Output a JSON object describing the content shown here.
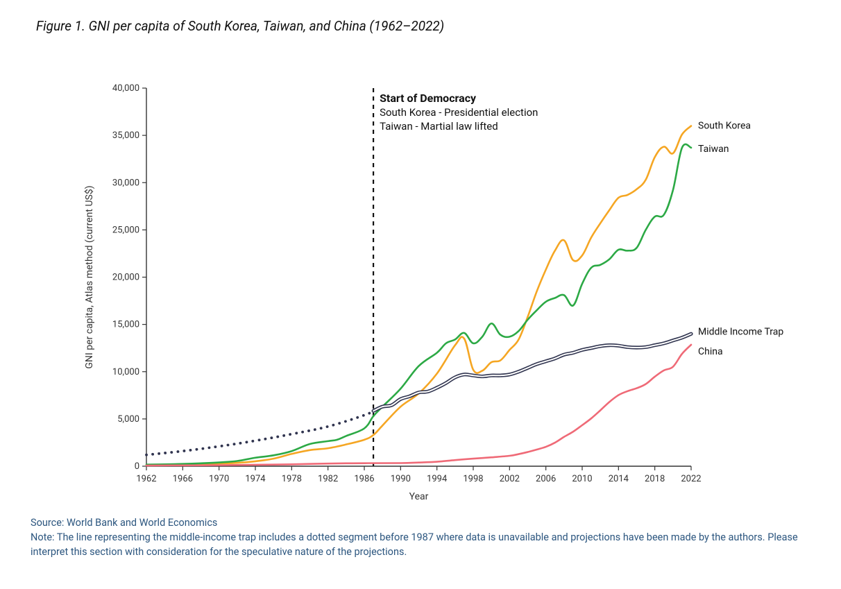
{
  "figure": {
    "title": "Figure 1. GNI per capita of South Korea, Taiwan, and China (1962–2022)"
  },
  "chart": {
    "type": "line",
    "background_color": "#ffffff",
    "axis_color": "#333333",
    "tick_font_size": 13,
    "axis_title_font_size": 14,
    "label_font_size": 14,
    "annotation_title_font_size": 16,
    "line_width": 2.6,
    "x": {
      "title": "Year",
      "min": 1962,
      "max": 2022,
      "tick_step": 4,
      "ticks": [
        1962,
        1966,
        1970,
        1974,
        1978,
        1982,
        1986,
        1990,
        1994,
        1998,
        2002,
        2006,
        2010,
        2014,
        2018,
        2022
      ]
    },
    "y": {
      "title": "GNI per capita, Atlas method (current US$)",
      "min": 0,
      "max": 40000,
      "tick_step": 5000,
      "ticks": [
        0,
        5000,
        10000,
        15000,
        20000,
        25000,
        30000,
        35000,
        40000
      ],
      "tick_labels": [
        "0",
        "5,000",
        "10,000",
        "15,000",
        "20,000",
        "25,000",
        "30,000",
        "35,000",
        "40,000"
      ]
    },
    "vertical_reference": {
      "year": 1987,
      "color": "#111111",
      "dash": "6,6",
      "width": 2.2
    },
    "annotation": {
      "title": "Start of Democracy",
      "lines": [
        "South Korea - Presidential election",
        "Taiwan - Martial law lifted"
      ]
    },
    "series": [
      {
        "name": "South Korea",
        "label": "South Korea",
        "color": "#f5a623",
        "style": "solid",
        "data": [
          [
            1962,
            120
          ],
          [
            1964,
            130
          ],
          [
            1966,
            150
          ],
          [
            1968,
            200
          ],
          [
            1970,
            280
          ],
          [
            1972,
            350
          ],
          [
            1974,
            520
          ],
          [
            1976,
            800
          ],
          [
            1978,
            1300
          ],
          [
            1980,
            1700
          ],
          [
            1982,
            1900
          ],
          [
            1984,
            2300
          ],
          [
            1986,
            2800
          ],
          [
            1987,
            3300
          ],
          [
            1988,
            4300
          ],
          [
            1990,
            6300
          ],
          [
            1992,
            7700
          ],
          [
            1994,
            9800
          ],
          [
            1996,
            12800
          ],
          [
            1997,
            13500
          ],
          [
            1998,
            10200
          ],
          [
            1999,
            10100
          ],
          [
            2000,
            11000
          ],
          [
            2001,
            11200
          ],
          [
            2002,
            12300
          ],
          [
            2003,
            13400
          ],
          [
            2004,
            15800
          ],
          [
            2005,
            18500
          ],
          [
            2006,
            20800
          ],
          [
            2007,
            22800
          ],
          [
            2008,
            23900
          ],
          [
            2009,
            21800
          ],
          [
            2010,
            22300
          ],
          [
            2011,
            24200
          ],
          [
            2012,
            25700
          ],
          [
            2013,
            27100
          ],
          [
            2014,
            28400
          ],
          [
            2015,
            28700
          ],
          [
            2016,
            29300
          ],
          [
            2017,
            30300
          ],
          [
            2018,
            32700
          ],
          [
            2019,
            33800
          ],
          [
            2020,
            33100
          ],
          [
            2021,
            35100
          ],
          [
            2022,
            36000
          ]
        ]
      },
      {
        "name": "Taiwan",
        "label": "Taiwan",
        "color": "#2ca945",
        "style": "solid",
        "data": [
          [
            1962,
            170
          ],
          [
            1964,
            200
          ],
          [
            1966,
            240
          ],
          [
            1968,
            310
          ],
          [
            1970,
            400
          ],
          [
            1972,
            550
          ],
          [
            1974,
            900
          ],
          [
            1976,
            1150
          ],
          [
            1978,
            1600
          ],
          [
            1980,
            2350
          ],
          [
            1982,
            2650
          ],
          [
            1983,
            2800
          ],
          [
            1984,
            3200
          ],
          [
            1986,
            4000
          ],
          [
            1987,
            5300
          ],
          [
            1988,
            6300
          ],
          [
            1990,
            8200
          ],
          [
            1992,
            10600
          ],
          [
            1994,
            12000
          ],
          [
            1995,
            13000
          ],
          [
            1996,
            13400
          ],
          [
            1997,
            14100
          ],
          [
            1998,
            13000
          ],
          [
            1999,
            13700
          ],
          [
            2000,
            15100
          ],
          [
            2001,
            13900
          ],
          [
            2002,
            13700
          ],
          [
            2003,
            14300
          ],
          [
            2004,
            15500
          ],
          [
            2005,
            16500
          ],
          [
            2006,
            17400
          ],
          [
            2007,
            17800
          ],
          [
            2008,
            18100
          ],
          [
            2009,
            17000
          ],
          [
            2010,
            19300
          ],
          [
            2011,
            21000
          ],
          [
            2012,
            21300
          ],
          [
            2013,
            21900
          ],
          [
            2014,
            22900
          ],
          [
            2015,
            22800
          ],
          [
            2016,
            23100
          ],
          [
            2017,
            25000
          ],
          [
            2018,
            26400
          ],
          [
            2019,
            26600
          ],
          [
            2020,
            29200
          ],
          [
            2021,
            33700
          ],
          [
            2022,
            33700
          ]
        ]
      },
      {
        "name": "Middle Income Trap",
        "label": "Middle Income Trap",
        "color": "#30344f",
        "style": "double",
        "dotted_before": 1987,
        "data": [
          [
            1962,
            1200
          ],
          [
            1966,
            1600
          ],
          [
            1970,
            2100
          ],
          [
            1974,
            2700
          ],
          [
            1978,
            3400
          ],
          [
            1982,
            4200
          ],
          [
            1986,
            5400
          ],
          [
            1987,
            5850
          ],
          [
            1988,
            6300
          ],
          [
            1989,
            6450
          ],
          [
            1990,
            7100
          ],
          [
            1991,
            7400
          ],
          [
            1992,
            7800
          ],
          [
            1993,
            7900
          ],
          [
            1994,
            8300
          ],
          [
            1995,
            8800
          ],
          [
            1996,
            9400
          ],
          [
            1997,
            9700
          ],
          [
            1998,
            9600
          ],
          [
            1999,
            9500
          ],
          [
            2000,
            9600
          ],
          [
            2001,
            9600
          ],
          [
            2002,
            9700
          ],
          [
            2003,
            10000
          ],
          [
            2004,
            10400
          ],
          [
            2005,
            10800
          ],
          [
            2006,
            11100
          ],
          [
            2007,
            11400
          ],
          [
            2008,
            11800
          ],
          [
            2009,
            12000
          ],
          [
            2010,
            12300
          ],
          [
            2011,
            12500
          ],
          [
            2012,
            12700
          ],
          [
            2013,
            12800
          ],
          [
            2014,
            12750
          ],
          [
            2015,
            12600
          ],
          [
            2016,
            12550
          ],
          [
            2017,
            12600
          ],
          [
            2018,
            12800
          ],
          [
            2019,
            13000
          ],
          [
            2020,
            13300
          ],
          [
            2021,
            13600
          ],
          [
            2022,
            14000
          ]
        ]
      },
      {
        "name": "China",
        "label": "China",
        "color": "#ef6a77",
        "style": "solid",
        "data": [
          [
            1962,
            70
          ],
          [
            1966,
            90
          ],
          [
            1970,
            110
          ],
          [
            1974,
            150
          ],
          [
            1978,
            200
          ],
          [
            1982,
            280
          ],
          [
            1986,
            320
          ],
          [
            1990,
            330
          ],
          [
            1992,
            390
          ],
          [
            1994,
            470
          ],
          [
            1996,
            650
          ],
          [
            1998,
            800
          ],
          [
            2000,
            940
          ],
          [
            2002,
            1100
          ],
          [
            2003,
            1280
          ],
          [
            2004,
            1500
          ],
          [
            2005,
            1760
          ],
          [
            2006,
            2050
          ],
          [
            2007,
            2490
          ],
          [
            2008,
            3100
          ],
          [
            2009,
            3650
          ],
          [
            2010,
            4340
          ],
          [
            2011,
            5060
          ],
          [
            2012,
            5910
          ],
          [
            2013,
            6800
          ],
          [
            2014,
            7520
          ],
          [
            2015,
            7940
          ],
          [
            2016,
            8250
          ],
          [
            2017,
            8690
          ],
          [
            2018,
            9470
          ],
          [
            2019,
            10140
          ],
          [
            2020,
            10520
          ],
          [
            2021,
            11890
          ],
          [
            2022,
            12850
          ]
        ]
      }
    ]
  },
  "footer": {
    "source": "Source: World Bank and World Economics",
    "note": "Note: The line representing the middle-income trap includes a dotted segment before 1987 where data is unavailable and projections have been made by the authors. Please interpret this section with consideration for the speculative nature of the projections.",
    "text_color": "#2c567f"
  }
}
